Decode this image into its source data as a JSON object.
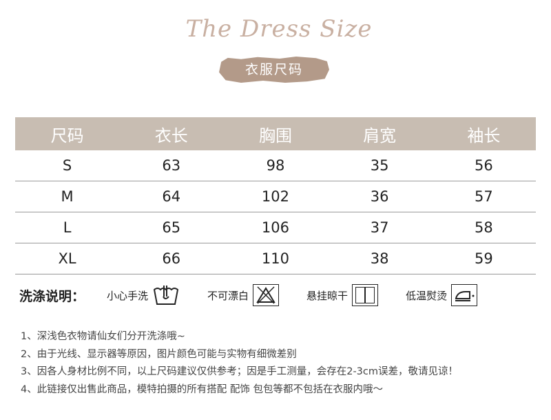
{
  "header": {
    "script_title": "The Dress Size",
    "badge": "衣服尺码"
  },
  "table": {
    "columns": [
      "尺码",
      "衣长",
      "胸围",
      "肩宽",
      "袖长"
    ],
    "rows": [
      [
        "S",
        "63",
        "98",
        "35",
        "56"
      ],
      [
        "M",
        "64",
        "102",
        "36",
        "57"
      ],
      [
        "L",
        "65",
        "106",
        "37",
        "58"
      ],
      [
        "XL",
        "66",
        "110",
        "38",
        "59"
      ]
    ]
  },
  "care": {
    "title": "洗涤说明：",
    "items": [
      {
        "label": "小心手洗",
        "icon": "hand-wash-icon"
      },
      {
        "label": "不可漂白",
        "icon": "no-bleach-icon"
      },
      {
        "label": "悬挂晾干",
        "icon": "line-dry-icon"
      },
      {
        "label": "低温熨烫",
        "icon": "low-iron-icon"
      }
    ]
  },
  "notes": [
    "1、深浅色衣物请仙女们分开洗涤哦~",
    "2、由于光线、显示器等原因，图片颜色可能与实物有细微差别",
    "3、因各人身材比例不同，以上尺码建议仅供参考；因是手工测量，会存在2-3cm误差，敬请见谅！",
    "4、此链接仅出售此商品，模特拍摄的所有搭配 配饰 包包等都不包括在衣服内哦～"
  ],
  "colors": {
    "header_bg": "#c8bdb2",
    "badge_bg": "#b39a89",
    "script": "#c9b0a2"
  }
}
